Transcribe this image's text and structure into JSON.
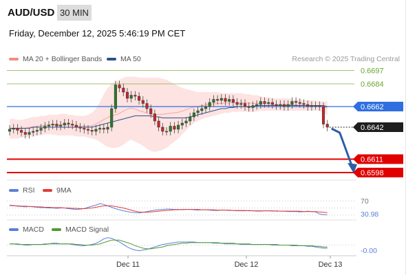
{
  "header": {
    "symbol": "AUD/USD",
    "timeframe": "30 MIN",
    "datetime": "Friday, December 12, 2025 5:46:19 PM CET"
  },
  "legend": {
    "bollinger_label": "MA 20 + Bollinger Bands",
    "ma50_label": "MA 50",
    "credit": "Research © 2025 Trading Central",
    "colors": {
      "bollinger": "#f28b82",
      "ma50": "#2e4f8f"
    }
  },
  "rsi_legend": {
    "rsi_label": "RSI",
    "ma_label": "9MA",
    "colors": {
      "rsi": "#5b7fd6",
      "ma": "#e53935"
    }
  },
  "macd_legend": {
    "macd_label": "MACD",
    "signal_label": "MACD Signal",
    "colors": {
      "macd": "#5b7fd6",
      "signal": "#4f9a2f"
    }
  },
  "chart_data": [
    {
      "type": "candlestick",
      "title": "AUD/USD",
      "ylim": [
        0.6592,
        0.67
      ],
      "x_ticks": [
        "Dec 11",
        "Dec 12",
        "Dec 13"
      ],
      "price_levels": [
        {
          "label": "0.6697",
          "value": 0.6697,
          "kind": "resistance",
          "color": "#7cb342"
        },
        {
          "label": "0.6684",
          "value": 0.6684,
          "kind": "resistance",
          "color": "#7cb342"
        },
        {
          "label": "0.6662",
          "value": 0.6662,
          "kind": "pivot",
          "color": "#2f6fe0"
        },
        {
          "label": "0.6642",
          "value": 0.6642,
          "kind": "last",
          "color": "#222222"
        },
        {
          "label": "0.6611",
          "value": 0.6611,
          "kind": "support",
          "color": "#e00000"
        },
        {
          "label": "0.6598",
          "value": 0.6598,
          "kind": "support",
          "color": "#e00000"
        }
      ],
      "close": [
        0.664,
        0.6641,
        0.6639,
        0.6637,
        0.6635,
        0.6637,
        0.6638,
        0.6639,
        0.6641,
        0.6643,
        0.6644,
        0.6645,
        0.6643,
        0.6644,
        0.6646,
        0.6645,
        0.6644,
        0.6642,
        0.6641,
        0.664,
        0.6639,
        0.6638,
        0.664,
        0.6641,
        0.664,
        0.6642,
        0.666,
        0.6683,
        0.668,
        0.6676,
        0.667,
        0.6673,
        0.6672,
        0.6668,
        0.6665,
        0.666,
        0.6655,
        0.6648,
        0.6642,
        0.6638,
        0.6638,
        0.6643,
        0.664,
        0.6644,
        0.6646,
        0.6648,
        0.6652,
        0.6656,
        0.6658,
        0.666,
        0.6662,
        0.6666,
        0.6669,
        0.6668,
        0.667,
        0.6667,
        0.6669,
        0.6666,
        0.6664,
        0.6665,
        0.6662,
        0.6661,
        0.6663,
        0.6664,
        0.6667,
        0.6665,
        0.6666,
        0.6664,
        0.6663,
        0.6664,
        0.6662,
        0.6664,
        0.6667,
        0.6666,
        0.6665,
        0.6664,
        0.6662,
        0.6663,
        0.6663,
        0.6662,
        0.6645,
        0.6642
      ],
      "bollinger_upper": [
        0.665,
        0.665,
        0.6649,
        0.6649,
        0.665,
        0.6651,
        0.6652,
        0.6652,
        0.6653,
        0.6653,
        0.6654,
        0.6654,
        0.6654,
        0.6655,
        0.6655,
        0.6654,
        0.6654,
        0.6653,
        0.6653,
        0.6653,
        0.6654,
        0.6656,
        0.666,
        0.6666,
        0.6674,
        0.668,
        0.6684,
        0.6686,
        0.6688,
        0.669,
        0.6691,
        0.6691,
        0.6691,
        0.669,
        0.669,
        0.669,
        0.669,
        0.669,
        0.669,
        0.6689,
        0.6688,
        0.6686,
        0.6684,
        0.6682,
        0.668,
        0.6679,
        0.6678,
        0.6677,
        0.6676,
        0.6676,
        0.6676,
        0.6676,
        0.6676,
        0.6676,
        0.6675,
        0.6675,
        0.6675,
        0.6675,
        0.6675,
        0.6675,
        0.6674,
        0.6674,
        0.6673,
        0.6673,
        0.6672,
        0.6671,
        0.6671,
        0.667,
        0.667,
        0.667,
        0.667,
        0.667,
        0.6669,
        0.6669,
        0.6669,
        0.6668,
        0.6668,
        0.6668,
        0.6668,
        0.6667,
        0.6667,
        0.6667
      ],
      "bollinger_lower": [
        0.6631,
        0.6631,
        0.6631,
        0.6632,
        0.6632,
        0.6633,
        0.6633,
        0.6634,
        0.6634,
        0.6635,
        0.6635,
        0.6635,
        0.6634,
        0.6634,
        0.6634,
        0.6634,
        0.6634,
        0.6633,
        0.6633,
        0.6633,
        0.6632,
        0.6631,
        0.663,
        0.6628,
        0.6625,
        0.6623,
        0.6622,
        0.6622,
        0.6623,
        0.6625,
        0.6628,
        0.663,
        0.6628,
        0.6626,
        0.6624,
        0.6621,
        0.6619,
        0.6618,
        0.6619,
        0.662,
        0.6622,
        0.6625,
        0.6628,
        0.6631,
        0.6635,
        0.6639,
        0.6643,
        0.6646,
        0.6648,
        0.665,
        0.6651,
        0.6652,
        0.6653,
        0.6654,
        0.6655,
        0.6656,
        0.6656,
        0.6657,
        0.6657,
        0.6657,
        0.6657,
        0.6657,
        0.6657,
        0.6657,
        0.6658,
        0.6658,
        0.6658,
        0.6658,
        0.6658,
        0.6658,
        0.6658,
        0.6658,
        0.6658,
        0.6658,
        0.6658,
        0.6658,
        0.6658,
        0.6658,
        0.6658,
        0.6658,
        0.6656,
        0.6654
      ],
      "ma50": [
        0.6641,
        0.6641,
        0.6641,
        0.6641,
        0.6641,
        0.6641,
        0.6642,
        0.6642,
        0.6642,
        0.6642,
        0.6642,
        0.6642,
        0.6642,
        0.6642,
        0.6642,
        0.6642,
        0.6642,
        0.6642,
        0.6642,
        0.6642,
        0.6642,
        0.6642,
        0.6643,
        0.6644,
        0.6645,
        0.6646,
        0.6647,
        0.6648,
        0.6649,
        0.665,
        0.6651,
        0.6652,
        0.6653,
        0.6653,
        0.6653,
        0.6653,
        0.6653,
        0.6652,
        0.6652,
        0.6651,
        0.6651,
        0.6651,
        0.6651,
        0.6651,
        0.6651,
        0.6651,
        0.6652,
        0.6653,
        0.6654,
        0.6655,
        0.6656,
        0.6657,
        0.6658,
        0.6659,
        0.666,
        0.666,
        0.6661,
        0.6661,
        0.6662,
        0.6662,
        0.6662,
        0.6662,
        0.6662,
        0.6663,
        0.6663,
        0.6663,
        0.6663,
        0.6663,
        0.6663,
        0.6663,
        0.6663,
        0.6663,
        0.6663,
        0.6663,
        0.6663,
        0.6663,
        0.6663,
        0.6663,
        0.6663,
        0.6663,
        0.6663,
        0.6662
      ],
      "forecast": {
        "from": 0.6642,
        "to": 0.6598,
        "direction": "down",
        "color": "#2a5ea8"
      }
    },
    {
      "type": "line",
      "title": "RSI",
      "ylim": [
        20,
        80
      ],
      "levels": [
        70,
        50,
        30
      ],
      "tick_labels": [
        "70",
        "30.98"
      ],
      "current_value": "30.98",
      "series": [
        {
          "name": "RSI",
          "values": [
            58,
            57,
            55,
            54,
            53,
            54,
            53,
            52,
            51,
            51,
            50,
            50,
            49,
            50,
            50,
            48,
            47,
            46,
            47,
            48,
            52,
            55,
            58,
            62,
            60,
            56,
            52,
            48,
            45,
            42,
            40,
            38,
            37,
            36,
            38,
            40,
            42,
            44,
            45,
            46,
            47,
            47,
            46,
            46,
            45,
            46,
            46,
            45,
            44,
            45,
            45,
            44,
            43,
            43,
            44,
            44,
            43,
            43,
            42,
            42,
            42,
            43,
            42,
            41,
            41,
            42,
            42,
            41,
            42,
            41,
            41,
            40,
            40,
            40,
            39,
            40,
            41,
            40,
            39,
            33,
            31,
            31
          ]
        },
        {
          "name": "9MA",
          "values": [
            57,
            56,
            56,
            55,
            55,
            54,
            54,
            53,
            53,
            52,
            52,
            51,
            51,
            51,
            50,
            50,
            49,
            49,
            48,
            48,
            49,
            50,
            52,
            54,
            56,
            56,
            56,
            54,
            52,
            50,
            47,
            44,
            41,
            39,
            38,
            38,
            39,
            40,
            41,
            42,
            43,
            44,
            45,
            45,
            46,
            46,
            46,
            46,
            46,
            45,
            45,
            45,
            45,
            44,
            44,
            44,
            44,
            43,
            43,
            43,
            43,
            42,
            42,
            42,
            42,
            42,
            42,
            42,
            41,
            41,
            41,
            41,
            41,
            41,
            41,
            40,
            40,
            40,
            40,
            39,
            38,
            37
          ]
        }
      ]
    },
    {
      "type": "line",
      "title": "MACD",
      "ylim": [
        -0.0015,
        0.0015
      ],
      "tick_labels": [
        "-0.00"
      ],
      "current_value": "-0.00",
      "series": [
        {
          "name": "MACD",
          "values": [
            0.0002,
            0.0002,
            0.0001,
            0.0001,
            0.0,
            0.0,
            0.0001,
            0.0001,
            0.0001,
            0.0002,
            0.0002,
            0.0003,
            0.0003,
            0.0002,
            0.0002,
            0.0002,
            0.0001,
            0.0,
            -0.0001,
            -0.0001,
            0.0,
            0.0001,
            0.0003,
            0.0006,
            0.001,
            0.0012,
            0.0011,
            0.0008,
            0.0005,
            0.0001,
            -0.0003,
            -0.0006,
            -0.0008,
            -0.0009,
            -0.0008,
            -0.0007,
            -0.0005,
            -0.0003,
            -0.0001,
            0.0001,
            0.0002,
            0.0003,
            0.0004,
            0.0005,
            0.0005,
            0.0005,
            0.0005,
            0.0005,
            0.0004,
            0.0004,
            0.0004,
            0.0004,
            0.0003,
            0.0003,
            0.0003,
            0.0002,
            0.0002,
            0.0002,
            0.0002,
            0.0001,
            0.0001,
            0.0001,
            0.0001,
            0.0001,
            0.0001,
            0.0001,
            0.0001,
            0.0,
            0.0,
            0.0,
            0.0,
            0.0,
            -0.0001,
            -0.0001,
            -0.0001,
            -0.0001,
            -0.0002,
            -0.0002,
            -0.0003,
            -0.0004,
            -0.0005,
            -0.0005
          ]
        },
        {
          "name": "MACD Signal",
          "values": [
            0.0002,
            0.0002,
            0.0002,
            0.0001,
            0.0001,
            0.0001,
            0.0001,
            0.0001,
            0.0001,
            0.0001,
            0.0002,
            0.0002,
            0.0002,
            0.0002,
            0.0002,
            0.0002,
            0.0002,
            0.0001,
            0.0001,
            0.0,
            0.0,
            0.0,
            0.0001,
            0.0002,
            0.0004,
            0.0006,
            0.0008,
            0.0008,
            0.0008,
            0.0006,
            0.0004,
            0.0002,
            -0.0001,
            -0.0003,
            -0.0005,
            -0.0006,
            -0.0006,
            -0.0005,
            -0.0004,
            -0.0003,
            -0.0001,
            0.0,
            0.0001,
            0.0002,
            0.0003,
            0.0003,
            0.0004,
            0.0004,
            0.0004,
            0.0004,
            0.0004,
            0.0004,
            0.0004,
            0.0004,
            0.0003,
            0.0003,
            0.0003,
            0.0003,
            0.0002,
            0.0002,
            0.0002,
            0.0002,
            0.0001,
            0.0001,
            0.0001,
            0.0001,
            0.0001,
            0.0001,
            0.0001,
            0.0,
            0.0,
            0.0,
            0.0,
            0.0,
            -0.0001,
            -0.0001,
            -0.0001,
            -0.0001,
            -0.0002,
            -0.0002,
            -0.0003,
            -0.0003
          ]
        }
      ]
    }
  ]
}
